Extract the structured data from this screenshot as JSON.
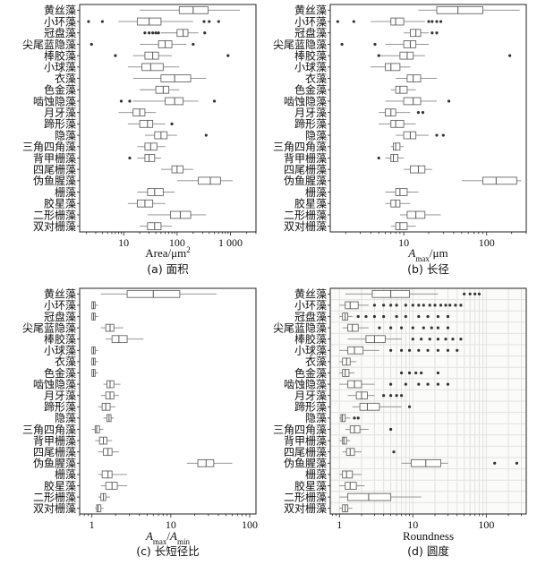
{
  "chart_data": [
    {
      "id": "a",
      "type": "boxplot",
      "horizontal": true,
      "caption": "(a) 面积",
      "xlabel": "Area/μm²",
      "xscale": "log",
      "xlim": [
        1.5,
        3000
      ],
      "xticks": [
        10,
        100,
        1000
      ],
      "xticklabels": [
        "10",
        "100",
        "1 000"
      ],
      "grid": false,
      "categories": [
        "黄丝藻",
        "小环藻",
        "冠盘藻",
        "尖尾蓝隐藻",
        "棒胶藻",
        "小球藻",
        "衣藻",
        "色金藻",
        "啮蚀隐藻",
        "月牙藻",
        "蹄形藻",
        "隐藻",
        "三角四角藻",
        "背甲栅藻",
        "四尾栅藻",
        "伪鱼腥藻",
        "栅藻",
        "胶星藻",
        "二形栅藻",
        "双对栅藻"
      ],
      "boxes": [
        {
          "lw": 20,
          "q1": 110,
          "med": 200,
          "q3": 380,
          "uw": 1500,
          "out": []
        },
        {
          "lw": 8,
          "q1": 18,
          "med": 30,
          "q3": 50,
          "uw": 200,
          "out": [
            2.2,
            4,
            320,
            400,
            600
          ]
        },
        {
          "lw": 50,
          "q1": 100,
          "med": 130,
          "q3": 160,
          "uw": 250,
          "out": [
            25,
            30,
            35,
            40,
            45,
            330
          ]
        },
        {
          "lw": 20,
          "q1": 45,
          "med": 60,
          "q3": 80,
          "uw": 150,
          "out": [
            2.5,
            200
          ]
        },
        {
          "lw": 15,
          "q1": 25,
          "med": 35,
          "q3": 45,
          "uw": 80,
          "out": [
            7,
            900
          ]
        },
        {
          "lw": 12,
          "q1": 22,
          "med": 32,
          "q3": 55,
          "uw": 110,
          "out": []
        },
        {
          "lw": 15,
          "q1": 50,
          "med": 90,
          "q3": 180,
          "uw": 350,
          "out": []
        },
        {
          "lw": 20,
          "q1": 40,
          "med": 55,
          "q3": 70,
          "uw": 110,
          "out": []
        },
        {
          "lw": 15,
          "q1": 60,
          "med": 90,
          "q3": 130,
          "uw": 250,
          "out": [
            9,
            13,
            500
          ]
        },
        {
          "lw": 8,
          "q1": 15,
          "med": 20,
          "q3": 25,
          "uw": 40,
          "out": []
        },
        {
          "lw": 12,
          "q1": 20,
          "med": 28,
          "q3": 35,
          "uw": 60,
          "out": [
            80
          ]
        },
        {
          "lw": 25,
          "q1": 38,
          "med": 50,
          "q3": 65,
          "uw": 100,
          "out": [
            350
          ]
        },
        {
          "lw": 18,
          "q1": 25,
          "med": 32,
          "q3": 42,
          "uw": 60,
          "out": []
        },
        {
          "lw": 18,
          "q1": 25,
          "med": 30,
          "q3": 38,
          "uw": 50,
          "out": [
            13
          ]
        },
        {
          "lw": 50,
          "q1": 80,
          "med": 100,
          "q3": 130,
          "uw": 200,
          "out": []
        },
        {
          "lw": 100,
          "q1": 250,
          "med": 420,
          "q3": 650,
          "uw": 1100,
          "out": []
        },
        {
          "lw": 18,
          "q1": 28,
          "med": 38,
          "q3": 55,
          "uw": 90,
          "out": []
        },
        {
          "lw": 12,
          "q1": 18,
          "med": 25,
          "q3": 35,
          "uw": 60,
          "out": []
        },
        {
          "lw": 28,
          "q1": 75,
          "med": 115,
          "q3": 180,
          "uw": 350,
          "out": []
        },
        {
          "lw": 20,
          "q1": 28,
          "med": 38,
          "q3": 50,
          "uw": 80,
          "out": []
        }
      ]
    },
    {
      "id": "b",
      "type": "boxplot",
      "horizontal": true,
      "caption": "(b) 长径",
      "xlabel": "A_max/μm",
      "xscale": "log",
      "xlim": [
        1.3,
        300
      ],
      "xticks": [
        10,
        100
      ],
      "xticklabels": [
        "10",
        "100"
      ],
      "grid": false,
      "categories": [
        "黄丝藻",
        "小环藻",
        "冠盘藻",
        "尖尾蓝隐藻",
        "棒胶藻",
        "小球藻",
        "衣藻",
        "色金藻",
        "啮蚀隐藻",
        "月牙藻",
        "蹄形藻",
        "隐藻",
        "三角四角藻",
        "背甲栅藻",
        "四尾栅藻",
        "伪鱼腥藻",
        "栅藻",
        "胶星藻",
        "二形栅藻",
        "双对栅藻"
      ],
      "boxes": [
        {
          "lw": 15,
          "q1": 25,
          "med": 45,
          "q3": 90,
          "uw": 250,
          "out": []
        },
        {
          "lw": 4,
          "q1": 7,
          "med": 8,
          "q3": 10,
          "uw": 18,
          "out": [
            1.6,
            2.5,
            20,
            22,
            25,
            28
          ]
        },
        {
          "lw": 10,
          "q1": 12,
          "med": 14,
          "q3": 16,
          "uw": 20,
          "out": [
            22,
            25
          ]
        },
        {
          "lw": 6,
          "q1": 10,
          "med": 12,
          "q3": 14,
          "uw": 20,
          "out": [
            1.8,
            4.5
          ]
        },
        {
          "lw": 5,
          "q1": 9,
          "med": 11,
          "q3": 13,
          "uw": 18,
          "out": [
            5,
            190
          ]
        },
        {
          "lw": 4,
          "q1": 6,
          "med": 7,
          "q3": 9,
          "uw": 12,
          "out": []
        },
        {
          "lw": 8,
          "q1": 11,
          "med": 13,
          "q3": 16,
          "uw": 25,
          "out": []
        },
        {
          "lw": 7,
          "q1": 8,
          "med": 9,
          "q3": 11,
          "uw": 14,
          "out": []
        },
        {
          "lw": 6,
          "q1": 10,
          "med": 13,
          "q3": 16,
          "uw": 25,
          "out": [
            35
          ]
        },
        {
          "lw": 5,
          "q1": 6,
          "med": 7,
          "q3": 8,
          "uw": 12,
          "out": [
            15,
            17
          ]
        },
        {
          "lw": 5,
          "q1": 7,
          "med": 8,
          "q3": 10,
          "uw": 14,
          "out": []
        },
        {
          "lw": 8,
          "q1": 10,
          "med": 12,
          "q3": 14,
          "uw": 20,
          "out": [
            25,
            30
          ]
        },
        {
          "lw": 7,
          "q1": 7.5,
          "med": 8,
          "q3": 9,
          "uw": 10,
          "out": []
        },
        {
          "lw": 6,
          "q1": 7,
          "med": 7.5,
          "q3": 8.5,
          "uw": 10,
          "out": [
            5
          ]
        },
        {
          "lw": 10,
          "q1": 12,
          "med": 15,
          "q3": 18,
          "uw": 22,
          "out": []
        },
        {
          "lw": 50,
          "q1": 90,
          "med": 130,
          "q3": 230,
          "uw": 260,
          "out": []
        },
        {
          "lw": 6,
          "q1": 8,
          "med": 9,
          "q3": 11,
          "uw": 15,
          "out": []
        },
        {
          "lw": 6,
          "q1": 7,
          "med": 8,
          "q3": 9,
          "uw": 12,
          "out": []
        },
        {
          "lw": 9,
          "q1": 11,
          "med": 14,
          "q3": 18,
          "uw": 28,
          "out": []
        },
        {
          "lw": 7,
          "q1": 8,
          "med": 9,
          "q3": 11,
          "uw": 14,
          "out": []
        }
      ]
    },
    {
      "id": "c",
      "type": "boxplot",
      "horizontal": true,
      "caption": "(c) 长短径比",
      "xlabel": "A_max/A_min",
      "xscale": "log",
      "xlim": [
        0.7,
        120
      ],
      "xticks": [
        1,
        10,
        100
      ],
      "xticklabels": [
        "1",
        "10",
        "100"
      ],
      "grid": false,
      "categories": [
        "黄丝藻",
        "小环藻",
        "冠盘藻",
        "尖尾蓝隐藻",
        "棒胶藻",
        "小球藻",
        "衣藻",
        "色金藻",
        "啮蚀隐藻",
        "月牙藻",
        "蹄形藻",
        "隐藻",
        "三角四角藻",
        "背甲栅藻",
        "四尾栅藻",
        "伪鱼腥藻",
        "栅藻",
        "胶星藻",
        "二形栅藻",
        "双对栅藻"
      ],
      "boxes": [
        {
          "lw": 1.3,
          "q1": 2.8,
          "med": 6,
          "q3": 13,
          "uw": 38,
          "out": []
        },
        {
          "lw": 1.0,
          "q1": 1.0,
          "med": 1.05,
          "q3": 1.1,
          "uw": 1.2,
          "out": []
        },
        {
          "lw": 1.0,
          "q1": 1.0,
          "med": 1.05,
          "q3": 1.1,
          "uw": 1.2,
          "out": []
        },
        {
          "lw": 1.3,
          "q1": 1.5,
          "med": 1.7,
          "q3": 1.9,
          "uw": 2.5,
          "out": []
        },
        {
          "lw": 1.5,
          "q1": 1.8,
          "med": 2.2,
          "q3": 2.8,
          "uw": 4.5,
          "out": []
        },
        {
          "lw": 1.0,
          "q1": 1.0,
          "med": 1.05,
          "q3": 1.1,
          "uw": 1.2,
          "out": []
        },
        {
          "lw": 1.0,
          "q1": 1.0,
          "med": 1.05,
          "q3": 1.1,
          "uw": 1.2,
          "out": []
        },
        {
          "lw": 1.0,
          "q1": 1.0,
          "med": 1.05,
          "q3": 1.1,
          "uw": 1.2,
          "out": []
        },
        {
          "lw": 1.4,
          "q1": 1.55,
          "med": 1.7,
          "q3": 1.9,
          "uw": 2.3,
          "out": []
        },
        {
          "lw": 1.3,
          "q1": 1.5,
          "med": 1.7,
          "q3": 1.9,
          "uw": 2.2,
          "out": []
        },
        {
          "lw": 1.2,
          "q1": 1.35,
          "med": 1.5,
          "q3": 1.7,
          "uw": 2.0,
          "out": []
        },
        {
          "lw": 1.4,
          "q1": 1.55,
          "med": 1.65,
          "q3": 1.75,
          "uw": 1.9,
          "out": []
        },
        {
          "lw": 1.0,
          "q1": 1.1,
          "med": 1.15,
          "q3": 1.25,
          "uw": 1.4,
          "out": []
        },
        {
          "lw": 1.1,
          "q1": 1.25,
          "med": 1.4,
          "q3": 1.55,
          "uw": 1.8,
          "out": []
        },
        {
          "lw": 1.2,
          "q1": 1.4,
          "med": 1.6,
          "q3": 1.8,
          "uw": 2.2,
          "out": []
        },
        {
          "lw": 16,
          "q1": 22,
          "med": 28,
          "q3": 35,
          "uw": 60,
          "out": []
        },
        {
          "lw": 1.2,
          "q1": 1.35,
          "med": 1.6,
          "q3": 1.8,
          "uw": 2.8,
          "out": []
        },
        {
          "lw": 1.3,
          "q1": 1.5,
          "med": 1.8,
          "q3": 2.1,
          "uw": 2.8,
          "out": []
        },
        {
          "lw": 1.2,
          "q1": 1.3,
          "med": 1.4,
          "q3": 1.5,
          "uw": 1.7,
          "out": []
        },
        {
          "lw": 1.1,
          "q1": 1.15,
          "med": 1.2,
          "q3": 1.3,
          "uw": 1.4,
          "out": []
        }
      ]
    },
    {
      "id": "d",
      "type": "boxplot",
      "horizontal": true,
      "caption": "(d) 圆度",
      "xlabel": "Roundness",
      "xscale": "log",
      "xlim": [
        0.75,
        350
      ],
      "xticks": [
        1,
        10,
        100
      ],
      "xticklabels": [
        "1",
        "10",
        "100"
      ],
      "grid": true,
      "categories": [
        "黄丝藻",
        "小环藻",
        "冠盘藻",
        "尖尾蓝隐藻",
        "棒胶藻",
        "小球藻",
        "衣藻",
        "色金藻",
        "啮蚀隐藻",
        "月牙藻",
        "蹄形藻",
        "隐藻",
        "三角四角藻",
        "背甲栅藻",
        "四尾栅藻",
        "伪鱼腥藻",
        "栅藻",
        "胶星藻",
        "二形栅藻",
        "双对栅藻"
      ],
      "boxes": [
        {
          "lw": 1.2,
          "q1": 2.8,
          "med": 5,
          "q3": 9,
          "uw": 22,
          "out": [
            50,
            60,
            70,
            80
          ]
        },
        {
          "lw": 1.0,
          "q1": 1.2,
          "med": 1.4,
          "q3": 1.8,
          "uw": 2.5,
          "out": [
            3,
            4,
            5,
            6,
            8,
            10,
            12,
            14,
            17,
            20,
            24,
            28,
            32,
            38,
            45
          ]
        },
        {
          "lw": 1.0,
          "q1": 1.1,
          "med": 1.2,
          "q3": 1.3,
          "uw": 1.5,
          "out": [
            1.8,
            2.3,
            3,
            4,
            6,
            8,
            12,
            16,
            22,
            30
          ]
        },
        {
          "lw": 1.1,
          "q1": 1.3,
          "med": 1.5,
          "q3": 1.8,
          "uw": 2.5,
          "out": [
            3.5,
            5,
            7,
            10,
            14,
            18,
            22,
            30
          ]
        },
        {
          "lw": 1.3,
          "q1": 2.3,
          "med": 3,
          "q3": 4.2,
          "uw": 7,
          "out": [
            10,
            13,
            17,
            22,
            28,
            35,
            45
          ]
        },
        {
          "lw": 1.0,
          "q1": 1.3,
          "med": 1.6,
          "q3": 2.1,
          "uw": 3.5,
          "out": [
            5,
            7,
            9,
            12,
            16,
            22,
            30,
            40
          ]
        },
        {
          "lw": 1.0,
          "q1": 1.1,
          "med": 1.25,
          "q3": 1.4,
          "uw": 1.7,
          "out": []
        },
        {
          "lw": 1.0,
          "q1": 1.1,
          "med": 1.2,
          "q3": 1.35,
          "uw": 1.6,
          "out": [
            7,
            9,
            11,
            13,
            22
          ]
        },
        {
          "lw": 1.0,
          "q1": 1.3,
          "med": 1.6,
          "q3": 2.0,
          "uw": 3,
          "out": [
            5,
            8,
            12,
            16,
            22,
            30
          ]
        },
        {
          "lw": 1.3,
          "q1": 1.7,
          "med": 2,
          "q3": 2.4,
          "uw": 3,
          "out": [
            4,
            5,
            6,
            7
          ]
        },
        {
          "lw": 1.5,
          "q1": 1.9,
          "med": 2.4,
          "q3": 3.5,
          "uw": 7,
          "out": [
            9
          ]
        },
        {
          "lw": 1.0,
          "q1": 1.05,
          "med": 1.1,
          "q3": 1.2,
          "uw": 1.4,
          "out": [
            1.6,
            1.8
          ]
        },
        {
          "lw": 1.2,
          "q1": 1.4,
          "med": 1.6,
          "q3": 1.9,
          "uw": 2.5,
          "out": [
            5
          ]
        },
        {
          "lw": 1.0,
          "q1": 1.1,
          "med": 1.15,
          "q3": 1.25,
          "uw": 1.4,
          "out": []
        },
        {
          "lw": 1.1,
          "q1": 1.25,
          "med": 1.4,
          "q3": 1.6,
          "uw": 2.0,
          "out": [
            5.5
          ]
        },
        {
          "lw": 7,
          "q1": 9.5,
          "med": 15,
          "q3": 24,
          "uw": 30,
          "out": [
            130,
            260
          ]
        },
        {
          "lw": 1.0,
          "q1": 1.1,
          "med": 1.25,
          "q3": 1.5,
          "uw": 2.0,
          "out": []
        },
        {
          "lw": 1.0,
          "q1": 1.2,
          "med": 1.4,
          "q3": 1.7,
          "uw": 2.2,
          "out": []
        },
        {
          "lw": 1.0,
          "q1": 1.3,
          "med": 2.5,
          "q3": 5,
          "uw": 13,
          "out": []
        },
        {
          "lw": 1.0,
          "q1": 1.1,
          "med": 1.2,
          "q3": 1.3,
          "uw": 1.5,
          "out": []
        }
      ]
    }
  ]
}
